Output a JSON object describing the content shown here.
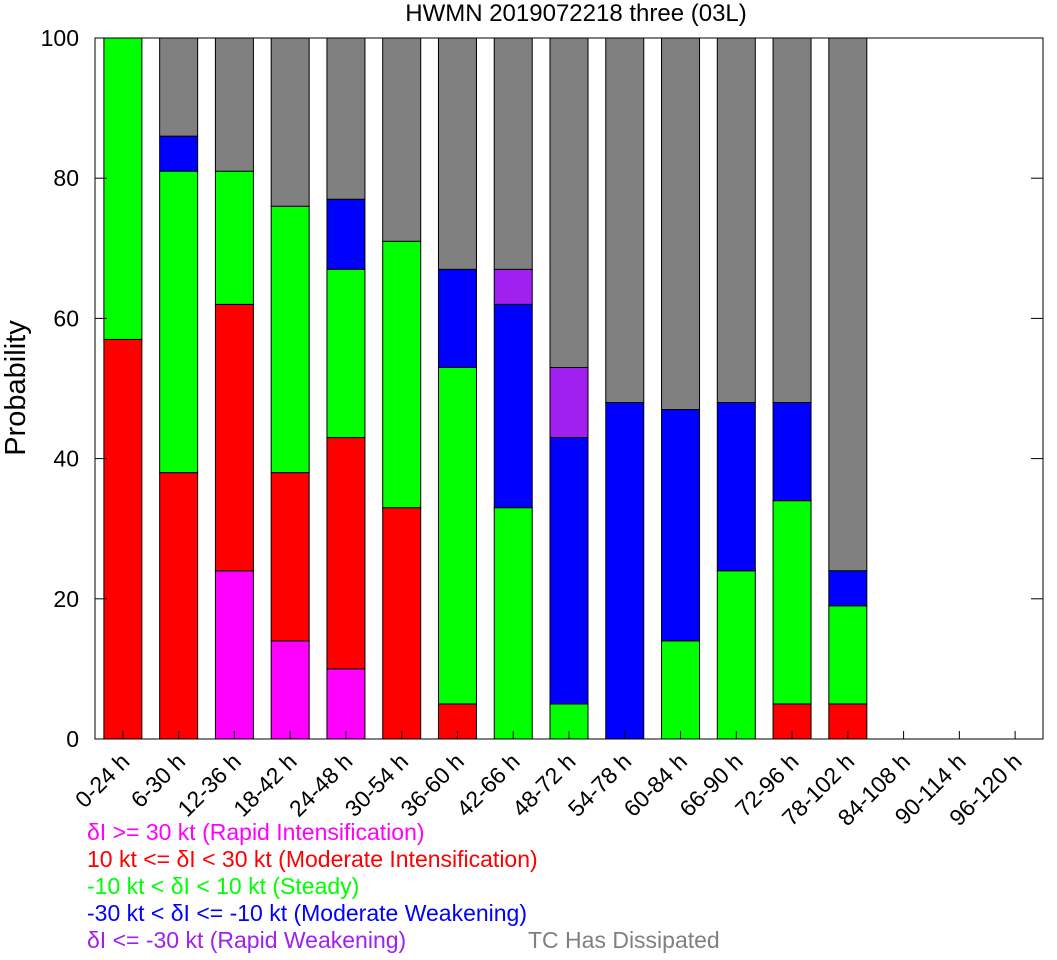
{
  "chart_data": {
    "type": "bar",
    "stacked": true,
    "title": "HWMN 2019072218 three (03L)",
    "ylabel": "Probability",
    "ylim": [
      0,
      100
    ],
    "yticks": [
      0,
      20,
      40,
      60,
      80,
      100
    ],
    "yticklabels": [
      "0",
      "20",
      "40",
      "60",
      "80",
      "100"
    ],
    "categories": [
      "0-24 h",
      "6-30 h",
      "12-36 h",
      "18-42 h",
      "24-48 h",
      "30-54 h",
      "36-60 h",
      "42-66 h",
      "48-72 h",
      "54-78 h",
      "60-84 h",
      "66-90 h",
      "72-96 h",
      "78-102 h",
      "84-108 h",
      "90-114 h",
      "96-120 h"
    ],
    "series": [
      {
        "name": "δI >= 30 kt (Rapid Intensification)",
        "color": "#ff00ff",
        "values": [
          0,
          0,
          24,
          14,
          10,
          0,
          0,
          0,
          0,
          0,
          0,
          0,
          0,
          0,
          0,
          0,
          0
        ]
      },
      {
        "name": "10 kt <= δI < 30 kt (Moderate Intensification)",
        "color": "#ff0000",
        "values": [
          57,
          38,
          38,
          24,
          33,
          33,
          5,
          0,
          0,
          0,
          0,
          0,
          5,
          5,
          0,
          0,
          0
        ]
      },
      {
        "name": "-10 kt < δI < 10 kt (Steady)",
        "color": "#00ff00",
        "values": [
          43,
          43,
          19,
          38,
          24,
          38,
          48,
          33,
          5,
          0,
          14,
          24,
          29,
          14,
          0,
          0,
          0
        ]
      },
      {
        "name": "-30 kt < δI <= -10 kt (Moderate Weakening)",
        "color": "#0000ff",
        "values": [
          0,
          5,
          0,
          0,
          10,
          0,
          14,
          29,
          38,
          48,
          33,
          24,
          14,
          5,
          0,
          0,
          0
        ]
      },
      {
        "name": "δI <= -30 kt (Rapid Weakening)",
        "color": "#a020f0",
        "values": [
          0,
          0,
          0,
          0,
          0,
          0,
          0,
          5,
          10,
          0,
          0,
          0,
          0,
          0,
          0,
          0,
          0
        ]
      },
      {
        "name": "TC Has Dissipated",
        "color": "#808080",
        "values": [
          0,
          14,
          19,
          24,
          23,
          29,
          33,
          33,
          47,
          52,
          53,
          52,
          52,
          76,
          0,
          0,
          0
        ]
      }
    ],
    "grid": false,
    "legend": "below"
  },
  "legend": {
    "rows": [
      [
        {
          "text": "δI >= 30 kt (Rapid Intensification)",
          "color": "#ff00ff"
        }
      ],
      [
        {
          "text": "10 kt <= δI < 30 kt (Moderate Intensification)",
          "color": "#ff0000"
        }
      ],
      [
        {
          "text": "-10 kt < δI < 10 kt (Steady)",
          "color": "#00ff00"
        }
      ],
      [
        {
          "text": "-30 kt < δI <= -10 kt (Moderate Weakening)",
          "color": "#0000ff"
        }
      ],
      [
        {
          "text": "δI <= -30 kt (Rapid Weakening)",
          "color": "#a020f0"
        },
        {
          "text": "TC Has Dissipated",
          "color": "#808080"
        }
      ]
    ]
  }
}
